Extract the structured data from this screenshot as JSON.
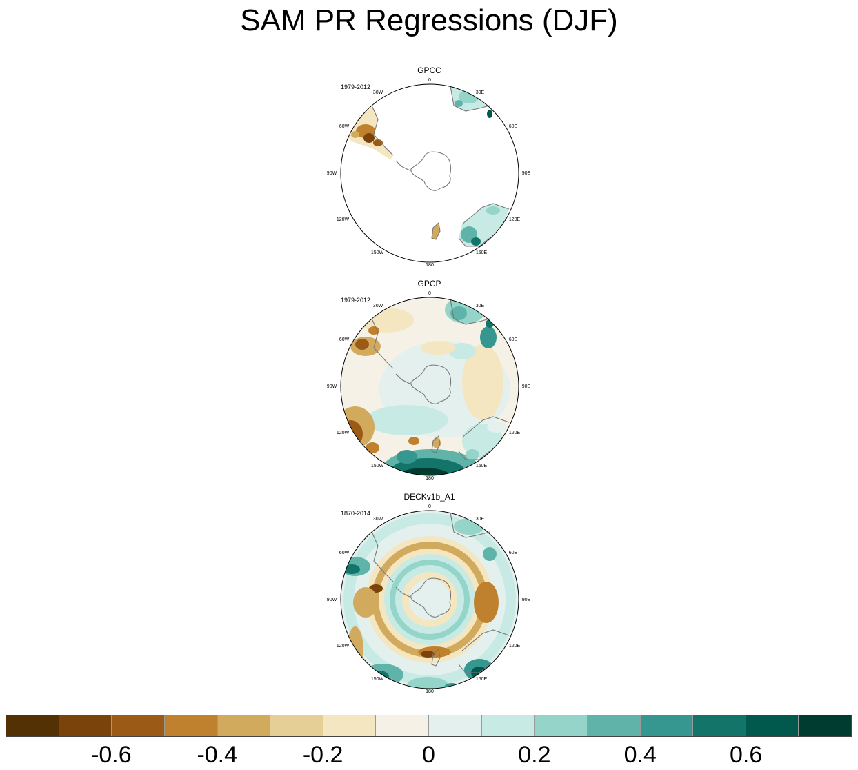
{
  "title": "SAM PR Regressions (DJF)",
  "panels": [
    {
      "name": "GPCC",
      "period": "1979-2012"
    },
    {
      "name": "GPCP",
      "period": "1979-2012"
    },
    {
      "name": "DECKv1b_A1",
      "period": "1870-2014"
    }
  ],
  "longitude_labels": [
    "0",
    "30E",
    "60E",
    "90E",
    "120E",
    "150E",
    "180",
    "150W",
    "120W",
    "90W",
    "60W",
    "30W"
  ],
  "colorbar": {
    "colors": [
      "#543005",
      "#7a430b",
      "#9b5a16",
      "#bf812d",
      "#d2aa5e",
      "#e6cf96",
      "#f5e6c2",
      "#f5f1e6",
      "#e3f0ee",
      "#c7eae4",
      "#94d4c9",
      "#5fb3a8",
      "#35978f",
      "#137469",
      "#01594e",
      "#003c30"
    ],
    "tick_labels": [
      "-0.6",
      "-0.4",
      "-0.2",
      "0",
      "0.2",
      "0.4",
      "0.6"
    ],
    "tick_values": [
      -0.6,
      -0.4,
      -0.2,
      0,
      0.2,
      0.4,
      0.6
    ]
  }
}
